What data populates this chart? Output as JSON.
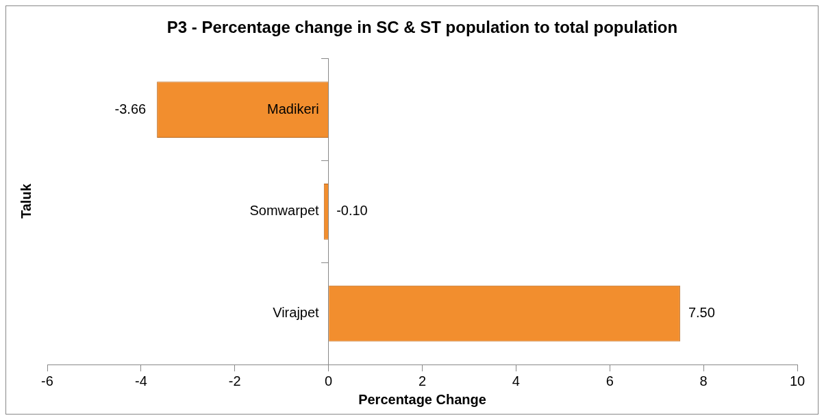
{
  "chart_data": {
    "type": "bar",
    "orientation": "horizontal",
    "title": "P3 - Percentage change in SC & ST population to total population",
    "xlabel": "Percentage Change",
    "ylabel": "Taluk",
    "categories": [
      "Madikeri",
      "Somwarpet",
      "Virajpet"
    ],
    "values": [
      -3.66,
      -0.1,
      7.5
    ],
    "value_labels": [
      "-3.66",
      "-0.10",
      "7.50"
    ],
    "color": "#f28e2e",
    "xlim": [
      -6,
      10
    ],
    "xticks": [
      -6,
      -4,
      -2,
      0,
      2,
      4,
      6,
      8,
      10
    ],
    "grid": false,
    "legend": false
  }
}
